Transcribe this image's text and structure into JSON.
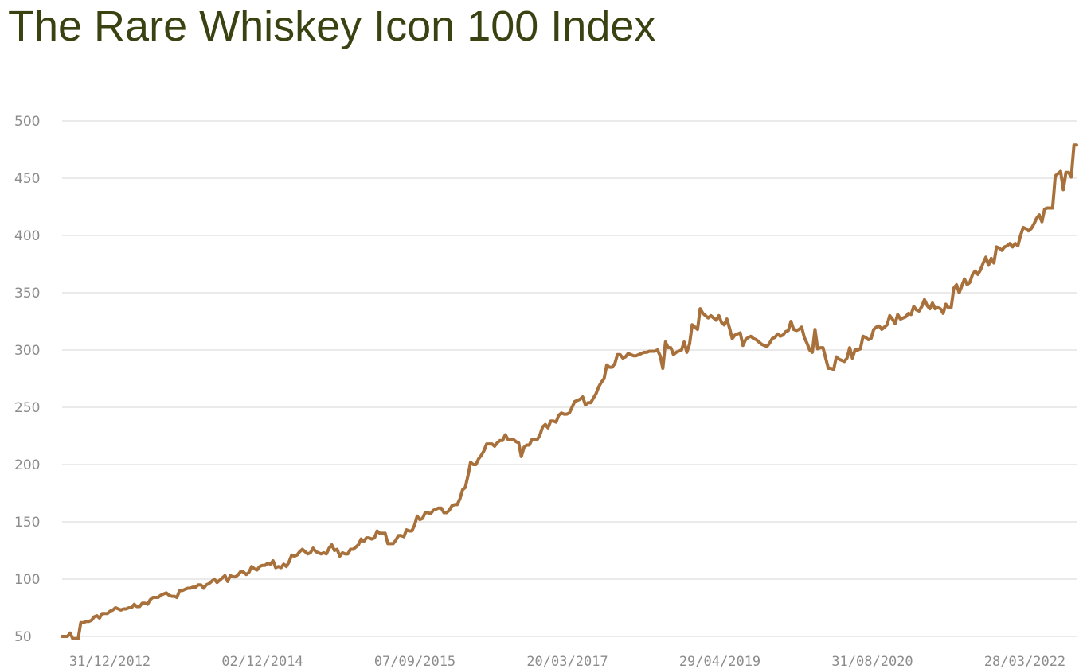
{
  "colors": {
    "title": "#3a4212",
    "series": "#a8703a",
    "tick_text": "#8c8c8c",
    "grid": "#d4d4d4"
  },
  "chart_data": {
    "type": "line",
    "title": "The Rare Whiskey Icon 100 Index",
    "xlabel": "",
    "ylabel": "",
    "ylim": [
      50,
      500
    ],
    "yticks": [
      50,
      100,
      150,
      200,
      250,
      300,
      350,
      400,
      450,
      500
    ],
    "xticks": [
      "31/12/2012",
      "02/12/2014",
      "07/09/2015",
      "20/03/2017",
      "29/04/2019",
      "31/08/2020",
      "28/03/2022"
    ],
    "grid": true,
    "legend": "none",
    "series": [
      {
        "values": [
          50,
          50,
          50,
          53,
          48,
          48,
          48,
          62,
          62,
          63,
          63,
          64,
          67,
          68,
          66,
          70,
          70,
          70,
          72,
          73,
          75,
          74,
          73,
          74,
          74,
          75,
          75,
          78,
          76,
          76,
          79,
          79,
          78,
          82,
          84,
          84,
          84,
          86,
          87,
          88,
          86,
          85,
          85,
          84,
          90,
          90,
          91,
          92,
          92,
          93,
          93,
          95,
          95,
          92,
          95,
          96,
          98,
          100,
          97,
          99,
          101,
          103,
          98,
          103,
          102,
          102,
          104,
          107,
          106,
          104,
          106,
          111,
          109,
          108,
          111,
          112,
          112,
          114,
          113,
          116,
          110,
          111,
          110,
          113,
          111,
          115,
          121,
          120,
          121,
          124,
          126,
          124,
          122,
          123,
          127,
          124,
          123,
          122,
          123,
          122,
          127,
          130,
          125,
          126,
          120,
          123,
          122,
          122,
          126,
          126,
          128,
          130,
          135,
          133,
          136,
          136,
          135,
          136,
          142,
          140,
          140,
          140,
          131,
          131,
          131,
          134,
          138,
          138,
          137,
          143,
          142,
          142,
          147,
          155,
          152,
          153,
          158,
          158,
          157,
          160,
          161,
          162,
          162,
          158,
          158,
          160,
          164,
          165,
          165,
          170,
          178,
          180,
          190,
          202,
          200,
          200,
          205,
          208,
          212,
          218,
          218,
          218,
          216,
          219,
          221,
          221,
          226,
          222,
          222,
          222,
          220,
          219,
          207,
          215,
          217,
          217,
          222,
          222,
          222,
          226,
          233,
          235,
          232,
          238,
          238,
          237,
          243,
          245,
          244,
          244,
          245,
          250,
          255,
          256,
          257,
          259,
          252,
          254,
          254,
          258,
          262,
          268,
          272,
          275,
          287,
          285,
          285,
          288,
          296,
          296,
          293,
          294,
          297,
          296,
          295,
          295,
          296,
          297,
          298,
          298,
          299,
          299,
          299,
          300,
          295,
          284,
          307,
          302,
          302,
          296,
          298,
          299,
          300,
          307,
          298,
          305,
          322,
          320,
          318,
          336,
          332,
          330,
          328,
          330,
          328,
          326,
          330,
          324,
          322,
          327,
          319,
          310,
          313,
          314,
          315,
          304,
          309,
          311,
          312,
          310,
          309,
          307,
          305,
          304,
          303,
          306,
          310,
          311,
          314,
          312,
          313,
          316,
          317,
          325,
          318,
          317,
          318,
          320,
          311,
          306,
          300,
          298,
          318,
          301,
          302,
          302,
          293,
          284,
          284,
          283,
          294,
          292,
          291,
          290,
          293,
          302,
          293,
          300,
          300,
          301,
          312,
          311,
          309,
          310,
          318,
          320,
          321,
          318,
          320,
          322,
          330,
          327,
          323,
          331,
          327,
          328,
          329,
          332,
          331,
          338,
          335,
          334,
          338,
          344,
          339,
          336,
          341,
          336,
          337,
          336,
          332,
          340,
          337,
          337,
          354,
          357,
          350,
          356,
          362,
          357,
          359,
          366,
          369,
          366,
          370,
          376,
          381,
          374,
          380,
          376,
          390,
          389,
          387,
          390,
          391,
          393,
          390,
          393,
          391,
          400,
          407,
          406,
          404,
          406,
          410,
          415,
          418,
          412,
          423,
          424,
          424,
          424,
          452,
          454,
          456,
          440,
          455,
          455,
          451,
          479,
          479
        ]
      }
    ]
  }
}
